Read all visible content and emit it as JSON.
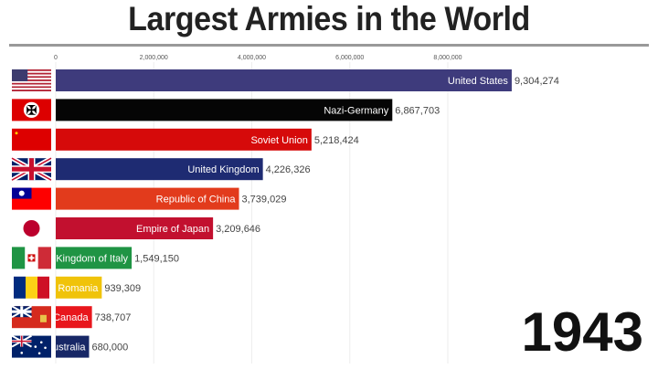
{
  "chart_data": {
    "type": "bar",
    "orientation": "horizontal",
    "title": "Largest Armies in the World",
    "period_label": "1943",
    "x_ticks": [
      0,
      2000000,
      4000000,
      6000000,
      8000000
    ],
    "x_tick_labels": [
      "0",
      "2,000,000",
      "4,000,000",
      "6,000,000",
      "8,000,000"
    ],
    "grid": true,
    "categories": [
      "United States",
      "Nazi-Germany",
      "Soviet Union",
      "United Kingdom",
      "Republic of China",
      "Empire of Japan",
      "Kingdom of Italy",
      "Romania",
      "Canada",
      "Australia"
    ],
    "values": [
      9304274,
      6867703,
      5218424,
      4226326,
      3739029,
      3209646,
      1549150,
      939309,
      738707,
      680000
    ],
    "value_labels": [
      "9,304,274",
      "6,867,703",
      "5,218,424",
      "4,226,326",
      "3,739,029",
      "3,209,646",
      "1,549,150",
      "939,309",
      "738,707",
      "680,000"
    ],
    "colors": [
      "#3e3b7c",
      "#050505",
      "#d60a0a",
      "#1e2b72",
      "#e23b1c",
      "#c2102f",
      "#1f9444",
      "#f0c30a",
      "#e8161c",
      "#172766"
    ],
    "flags": [
      "usa-flag",
      "nazi-germany-flag",
      "soviet-flag",
      "uk-flag",
      "roc-flag",
      "japan-flag",
      "italy-flag",
      "romania-flag",
      "canada-flag",
      "australia-flag"
    ]
  }
}
